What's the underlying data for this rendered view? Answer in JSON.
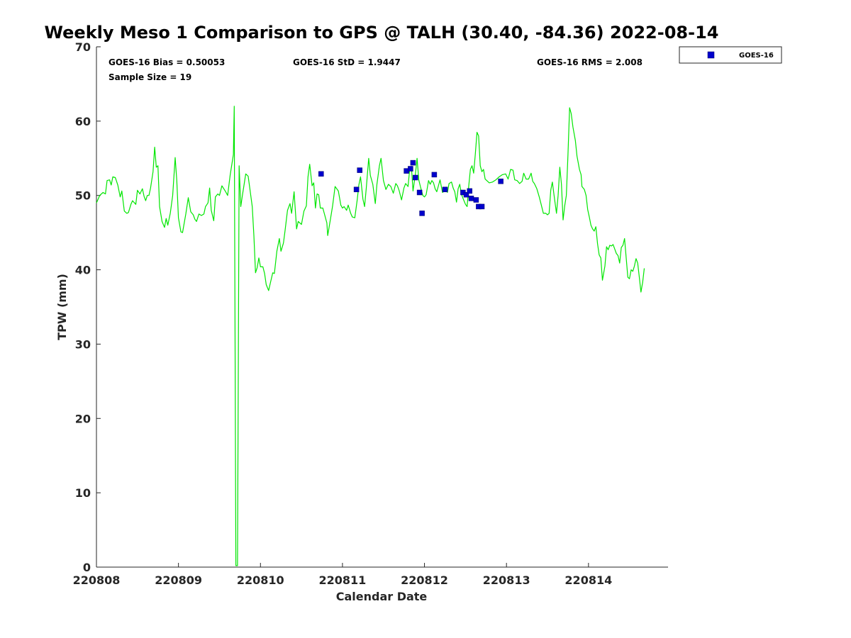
{
  "chart_data": {
    "type": "line",
    "title": "Weekly Meso 1 Comparison to GPS @ TALH (30.40, -84.36) 2022-08-14",
    "xlabel": "Calendar Date",
    "ylabel": "TPW (mm)",
    "xlim": [
      0.0,
      6.97
    ],
    "ylim": [
      0,
      70
    ],
    "x_ticks": [
      0,
      1,
      2,
      3,
      4,
      5,
      6
    ],
    "x_tick_labels": [
      "220808",
      "220809",
      "220810",
      "220811",
      "220812",
      "220813",
      "220814"
    ],
    "y_ticks": [
      0,
      10,
      20,
      30,
      40,
      50,
      60,
      70
    ],
    "y_tick_labels": [
      "0",
      "10",
      "20",
      "30",
      "40",
      "50",
      "60",
      "70"
    ],
    "stats": {
      "bias": "GOES-16 Bias = 0.50053",
      "std": "GOES-16 StD = 1.9447",
      "rms": "GOES-16 RMS = 2.008",
      "sample": "Sample Size = 19"
    },
    "legend": {
      "label": "GOES-16",
      "position": "outside-top-right"
    },
    "colors": {
      "gps_line": "#00e600",
      "goes_marker": "#0000cc"
    },
    "series": [
      {
        "name": "",
        "kind": "line",
        "points": [
          [
            0.0,
            49.0
          ],
          [
            0.04,
            50.0
          ],
          [
            0.08,
            50.4
          ],
          [
            0.11,
            50.2
          ],
          [
            0.13,
            52.0
          ],
          [
            0.16,
            52.1
          ],
          [
            0.18,
            51.4
          ],
          [
            0.2,
            52.5
          ],
          [
            0.23,
            52.4
          ],
          [
            0.26,
            51.4
          ],
          [
            0.29,
            49.8
          ],
          [
            0.31,
            50.6
          ],
          [
            0.34,
            47.9
          ],
          [
            0.37,
            47.6
          ],
          [
            0.39,
            47.7
          ],
          [
            0.42,
            48.8
          ],
          [
            0.44,
            49.3
          ],
          [
            0.48,
            48.8
          ],
          [
            0.5,
            50.7
          ],
          [
            0.53,
            50.2
          ],
          [
            0.56,
            50.9
          ],
          [
            0.58,
            49.9
          ],
          [
            0.6,
            49.3
          ],
          [
            0.62,
            50.0
          ],
          [
            0.64,
            50.0
          ],
          [
            0.66,
            51.0
          ],
          [
            0.69,
            53.2
          ],
          [
            0.71,
            56.5
          ],
          [
            0.73,
            53.8
          ],
          [
            0.75,
            54.0
          ],
          [
            0.77,
            48.5
          ],
          [
            0.8,
            46.5
          ],
          [
            0.83,
            45.7
          ],
          [
            0.85,
            46.9
          ],
          [
            0.87,
            46.0
          ],
          [
            0.9,
            47.6
          ],
          [
            0.93,
            50.0
          ],
          [
            0.96,
            55.1
          ],
          [
            0.98,
            52.0
          ],
          [
            1.0,
            47.0
          ],
          [
            1.03,
            45.1
          ],
          [
            1.05,
            45.0
          ],
          [
            1.09,
            47.5
          ],
          [
            1.12,
            49.7
          ],
          [
            1.15,
            47.8
          ],
          [
            1.18,
            47.4
          ],
          [
            1.2,
            46.8
          ],
          [
            1.22,
            46.5
          ],
          [
            1.25,
            47.5
          ],
          [
            1.28,
            47.3
          ],
          [
            1.31,
            47.5
          ],
          [
            1.33,
            48.5
          ],
          [
            1.36,
            49.0
          ],
          [
            1.38,
            51.0
          ],
          [
            1.4,
            48.0
          ],
          [
            1.43,
            46.6
          ],
          [
            1.45,
            49.8
          ],
          [
            1.48,
            50.2
          ],
          [
            1.5,
            50.0
          ],
          [
            1.53,
            51.3
          ],
          [
            1.57,
            50.6
          ],
          [
            1.6,
            50.0
          ],
          [
            1.63,
            52.7
          ],
          [
            1.67,
            55.5
          ],
          [
            1.68,
            62.0
          ],
          [
            1.7,
            0.2
          ],
          [
            1.72,
            0.2
          ],
          [
            1.74,
            54.0
          ],
          [
            1.76,
            48.5
          ],
          [
            1.78,
            50.0
          ],
          [
            1.8,
            51.4
          ],
          [
            1.82,
            52.9
          ],
          [
            1.85,
            52.6
          ],
          [
            1.87,
            51.0
          ],
          [
            1.9,
            48.5
          ],
          [
            1.92,
            44.6
          ],
          [
            1.94,
            39.6
          ],
          [
            1.96,
            40.3
          ],
          [
            1.98,
            41.6
          ],
          [
            2.0,
            40.4
          ],
          [
            2.03,
            40.4
          ],
          [
            2.05,
            39.5
          ],
          [
            2.07,
            38.0
          ],
          [
            2.1,
            37.2
          ],
          [
            2.12,
            38.2
          ],
          [
            2.15,
            39.6
          ],
          [
            2.17,
            39.5
          ],
          [
            2.2,
            42.5
          ],
          [
            2.23,
            44.2
          ],
          [
            2.25,
            42.5
          ],
          [
            2.28,
            43.6
          ],
          [
            2.3,
            45.3
          ],
          [
            2.33,
            48.0
          ],
          [
            2.36,
            48.9
          ],
          [
            2.38,
            47.6
          ],
          [
            2.41,
            50.5
          ],
          [
            2.44,
            45.5
          ],
          [
            2.46,
            46.5
          ],
          [
            2.48,
            46.3
          ],
          [
            2.5,
            46.1
          ],
          [
            2.53,
            47.9
          ],
          [
            2.56,
            48.6
          ],
          [
            2.58,
            52.5
          ],
          [
            2.6,
            54.2
          ],
          [
            2.63,
            51.3
          ],
          [
            2.65,
            51.7
          ],
          [
            2.67,
            48.3
          ],
          [
            2.69,
            50.2
          ],
          [
            2.71,
            50.1
          ],
          [
            2.73,
            48.3
          ],
          [
            2.76,
            48.3
          ],
          [
            2.78,
            47.5
          ],
          [
            2.81,
            46.3
          ],
          [
            2.82,
            44.6
          ],
          [
            2.85,
            46.6
          ],
          [
            2.88,
            48.6
          ],
          [
            2.91,
            51.2
          ],
          [
            2.95,
            50.6
          ],
          [
            2.98,
            48.7
          ],
          [
            3.0,
            48.3
          ],
          [
            3.02,
            48.5
          ],
          [
            3.05,
            48.0
          ],
          [
            3.07,
            48.7
          ],
          [
            3.1,
            47.6
          ],
          [
            3.12,
            47.1
          ],
          [
            3.15,
            47.0
          ],
          [
            3.18,
            49.4
          ],
          [
            3.2,
            51.4
          ],
          [
            3.22,
            52.5
          ],
          [
            3.25,
            49.5
          ],
          [
            3.27,
            48.5
          ],
          [
            3.29,
            51.0
          ],
          [
            3.32,
            55.0
          ],
          [
            3.34,
            52.7
          ],
          [
            3.37,
            51.5
          ],
          [
            3.4,
            48.9
          ],
          [
            3.42,
            51.5
          ],
          [
            3.45,
            54.0
          ],
          [
            3.47,
            55.0
          ],
          [
            3.5,
            52.0
          ],
          [
            3.53,
            50.8
          ],
          [
            3.56,
            51.5
          ],
          [
            3.59,
            51.2
          ],
          [
            3.62,
            50.3
          ],
          [
            3.65,
            51.6
          ],
          [
            3.67,
            51.3
          ],
          [
            3.69,
            50.7
          ],
          [
            3.72,
            49.4
          ],
          [
            3.75,
            51.0
          ],
          [
            3.77,
            51.6
          ],
          [
            3.8,
            51.2
          ],
          [
            3.82,
            53.5
          ],
          [
            3.84,
            53.9
          ],
          [
            3.86,
            50.6
          ],
          [
            3.89,
            52.9
          ],
          [
            3.91,
            55.0
          ],
          [
            3.93,
            52.1
          ],
          [
            3.95,
            51.2
          ],
          [
            3.98,
            50.0
          ],
          [
            4.0,
            49.8
          ],
          [
            4.02,
            50.1
          ],
          [
            4.05,
            52.0
          ],
          [
            4.07,
            51.5
          ],
          [
            4.09,
            52.0
          ],
          [
            4.11,
            51.7
          ],
          [
            4.13,
            50.9
          ],
          [
            4.15,
            50.5
          ],
          [
            4.17,
            51.3
          ],
          [
            4.19,
            52.1
          ],
          [
            4.22,
            50.4
          ],
          [
            4.24,
            50.6
          ],
          [
            4.26,
            51.1
          ],
          [
            4.28,
            50.4
          ],
          [
            4.3,
            51.6
          ],
          [
            4.33,
            51.8
          ],
          [
            4.35,
            51.0
          ],
          [
            4.37,
            50.5
          ],
          [
            4.39,
            49.1
          ],
          [
            4.41,
            50.9
          ],
          [
            4.43,
            51.5
          ],
          [
            4.45,
            50.2
          ],
          [
            4.47,
            49.6
          ],
          [
            4.5,
            48.8
          ],
          [
            4.52,
            48.5
          ],
          [
            4.54,
            51.3
          ],
          [
            4.56,
            53.5
          ],
          [
            4.58,
            54.0
          ],
          [
            4.6,
            53.0
          ],
          [
            4.62,
            55.5
          ],
          [
            4.64,
            58.5
          ],
          [
            4.66,
            58.0
          ],
          [
            4.68,
            54.0
          ],
          [
            4.7,
            53.2
          ],
          [
            4.72,
            53.5
          ],
          [
            4.74,
            52.2
          ],
          [
            4.76,
            52.0
          ],
          [
            4.79,
            51.7
          ],
          [
            4.83,
            51.8
          ],
          [
            4.87,
            52.1
          ],
          [
            4.91,
            52.5
          ],
          [
            4.95,
            52.8
          ],
          [
            4.99,
            52.9
          ],
          [
            5.02,
            52.2
          ],
          [
            5.05,
            53.5
          ],
          [
            5.08,
            53.4
          ],
          [
            5.1,
            52.1
          ],
          [
            5.13,
            52.0
          ],
          [
            5.16,
            51.6
          ],
          [
            5.19,
            51.9
          ],
          [
            5.21,
            53.0
          ],
          [
            5.24,
            52.2
          ],
          [
            5.27,
            52.2
          ],
          [
            5.3,
            53.0
          ],
          [
            5.32,
            51.9
          ],
          [
            5.34,
            51.6
          ],
          [
            5.37,
            50.9
          ],
          [
            5.4,
            49.8
          ],
          [
            5.42,
            48.9
          ],
          [
            5.45,
            47.6
          ],
          [
            5.48,
            47.6
          ],
          [
            5.5,
            47.4
          ],
          [
            5.52,
            47.6
          ],
          [
            5.54,
            50.7
          ],
          [
            5.56,
            51.8
          ],
          [
            5.58,
            50.0
          ],
          [
            5.61,
            47.6
          ],
          [
            5.63,
            50.0
          ],
          [
            5.65,
            53.8
          ],
          [
            5.67,
            51.5
          ],
          [
            5.69,
            46.7
          ],
          [
            5.71,
            48.6
          ],
          [
            5.73,
            50.0
          ],
          [
            5.75,
            55.5
          ],
          [
            5.77,
            61.8
          ],
          [
            5.79,
            61.0
          ],
          [
            5.81,
            59.2
          ],
          [
            5.84,
            57.4
          ],
          [
            5.86,
            55.3
          ],
          [
            5.89,
            53.5
          ],
          [
            5.91,
            52.8
          ],
          [
            5.92,
            51.2
          ],
          [
            5.95,
            50.8
          ],
          [
            5.97,
            50.0
          ],
          [
            5.99,
            48.1
          ],
          [
            6.01,
            47.1
          ],
          [
            6.03,
            46.0
          ],
          [
            6.05,
            45.5
          ],
          [
            6.07,
            45.2
          ],
          [
            6.09,
            45.8
          ],
          [
            6.11,
            43.5
          ],
          [
            6.13,
            42.0
          ],
          [
            6.15,
            41.6
          ],
          [
            6.17,
            38.6
          ],
          [
            6.2,
            40.5
          ],
          [
            6.22,
            43.1
          ],
          [
            6.24,
            42.7
          ],
          [
            6.26,
            43.3
          ],
          [
            6.28,
            43.2
          ],
          [
            6.3,
            43.4
          ],
          [
            6.32,
            42.8
          ],
          [
            6.34,
            42.2
          ],
          [
            6.36,
            41.9
          ],
          [
            6.38,
            40.9
          ],
          [
            6.4,
            43.0
          ],
          [
            6.42,
            43.3
          ],
          [
            6.44,
            44.2
          ],
          [
            6.46,
            41.6
          ],
          [
            6.48,
            39.0
          ],
          [
            6.5,
            38.8
          ],
          [
            6.52,
            40.0
          ],
          [
            6.54,
            39.8
          ],
          [
            6.56,
            40.5
          ],
          [
            6.58,
            41.5
          ],
          [
            6.6,
            40.9
          ],
          [
            6.62,
            39.0
          ],
          [
            6.64,
            37.0
          ],
          [
            6.66,
            38.3
          ],
          [
            6.68,
            40.2
          ]
        ]
      },
      {
        "name": "GOES-16",
        "kind": "scatter",
        "points": [
          [
            2.74,
            52.9
          ],
          [
            3.17,
            50.8
          ],
          [
            3.21,
            53.4
          ],
          [
            3.78,
            53.3
          ],
          [
            3.83,
            53.6
          ],
          [
            3.86,
            54.4
          ],
          [
            3.89,
            52.4
          ],
          [
            3.94,
            50.4
          ],
          [
            3.97,
            47.6
          ],
          [
            4.12,
            52.8
          ],
          [
            4.25,
            50.8
          ],
          [
            4.47,
            50.4
          ],
          [
            4.51,
            50.1
          ],
          [
            4.55,
            50.6
          ],
          [
            4.57,
            49.6
          ],
          [
            4.63,
            49.4
          ],
          [
            4.66,
            48.5
          ],
          [
            4.7,
            48.5
          ],
          [
            4.93,
            51.9
          ]
        ]
      }
    ]
  }
}
